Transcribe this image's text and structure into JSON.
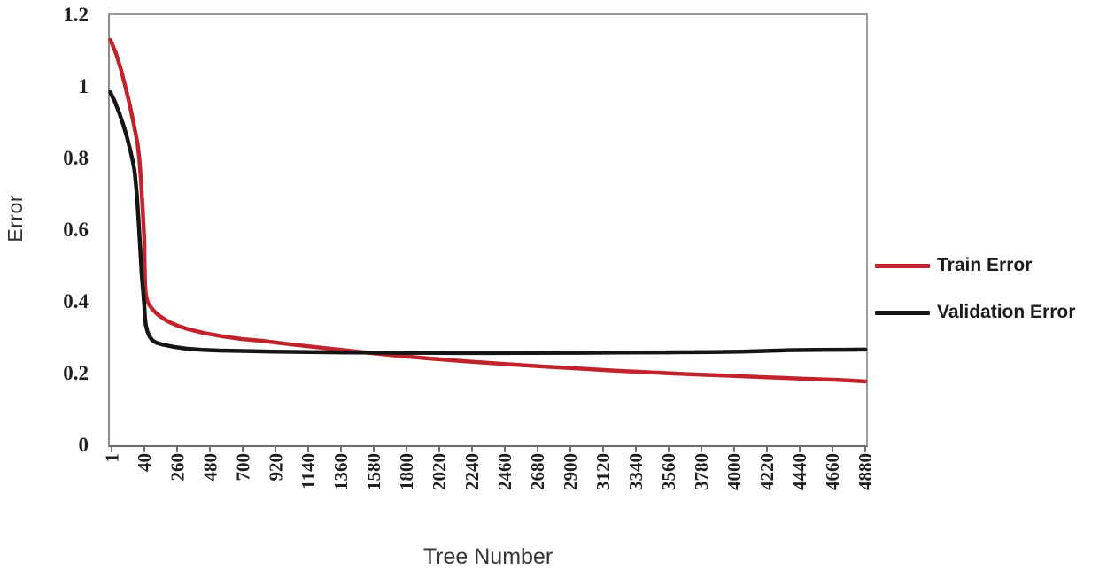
{
  "chart_data": {
    "type": "line",
    "title": "",
    "xlabel": "Tree Number",
    "ylabel": "Error",
    "grid": false,
    "legend_position": "right-center",
    "ylim": [
      0,
      1.2
    ],
    "y_ticks": [
      0,
      0.2,
      0.4,
      0.6,
      0.8,
      1,
      1.2
    ],
    "y_tick_labels": [
      "0",
      "0.2",
      "0.4",
      "0.6",
      "0.8",
      "1",
      "1.2"
    ],
    "x_ticks": [
      1,
      40,
      260,
      480,
      700,
      920,
      1140,
      1360,
      1580,
      1800,
      2020,
      2240,
      2460,
      2680,
      2900,
      3120,
      3340,
      3560,
      3780,
      4000,
      4220,
      4440,
      4660,
      4880
    ],
    "x_tick_labels": [
      "1",
      "40",
      "260",
      "480",
      "700",
      "920",
      "1140",
      "1360",
      "1580",
      "1800",
      "2020",
      "2240",
      "2460",
      "2680",
      "2900",
      "3120",
      "3340",
      "3560",
      "3780",
      "4000",
      "4220",
      "4440",
      "4660",
      "4880"
    ],
    "series": [
      {
        "name": "Train Error",
        "color": "#c0232b",
        "points": [
          [
            1,
            1.131
          ],
          [
            6,
            1.095
          ],
          [
            12,
            1.05
          ],
          [
            18,
            0.995
          ],
          [
            23,
            0.945
          ],
          [
            27,
            0.9
          ],
          [
            30,
            0.865
          ],
          [
            32,
            0.84
          ],
          [
            34,
            0.8
          ],
          [
            36,
            0.74
          ],
          [
            38,
            0.66
          ],
          [
            40,
            0.57
          ],
          [
            42,
            0.5
          ],
          [
            45,
            0.45
          ],
          [
            49,
            0.425
          ],
          [
            55,
            0.41
          ],
          [
            64,
            0.398
          ],
          [
            78,
            0.388
          ],
          [
            95,
            0.379
          ],
          [
            120,
            0.368
          ],
          [
            155,
            0.357
          ],
          [
            200,
            0.345
          ],
          [
            260,
            0.334
          ],
          [
            340,
            0.323
          ],
          [
            440,
            0.313
          ],
          [
            560,
            0.304
          ],
          [
            700,
            0.296
          ],
          [
            835,
            0.291
          ],
          [
            1030,
            0.281
          ],
          [
            1250,
            0.271
          ],
          [
            1450,
            0.262
          ],
          [
            1700,
            0.251
          ],
          [
            1950,
            0.242
          ],
          [
            2200,
            0.234
          ],
          [
            2450,
            0.227
          ],
          [
            2700,
            0.22
          ],
          [
            2950,
            0.214
          ],
          [
            3200,
            0.208
          ],
          [
            3450,
            0.203
          ],
          [
            3700,
            0.198
          ],
          [
            3950,
            0.194
          ],
          [
            4200,
            0.19
          ],
          [
            4450,
            0.186
          ],
          [
            4700,
            0.182
          ],
          [
            4920,
            0.178
          ]
        ]
      },
      {
        "name": "Validation Error",
        "color": "#151515",
        "points": [
          [
            1,
            0.985
          ],
          [
            5,
            0.958
          ],
          [
            10,
            0.928
          ],
          [
            15,
            0.893
          ],
          [
            19,
            0.862
          ],
          [
            23,
            0.825
          ],
          [
            26,
            0.795
          ],
          [
            28,
            0.77
          ],
          [
            29,
            0.75
          ],
          [
            31,
            0.7
          ],
          [
            33,
            0.63
          ],
          [
            35,
            0.55
          ],
          [
            37,
            0.47
          ],
          [
            39,
            0.415
          ],
          [
            41,
            0.38
          ],
          [
            44,
            0.355
          ],
          [
            50,
            0.335
          ],
          [
            60,
            0.318
          ],
          [
            75,
            0.303
          ],
          [
            95,
            0.292
          ],
          [
            120,
            0.286
          ],
          [
            160,
            0.281
          ],
          [
            237,
            0.2745
          ],
          [
            320,
            0.2695
          ],
          [
            430,
            0.266
          ],
          [
            560,
            0.264
          ],
          [
            700,
            0.263
          ],
          [
            900,
            0.261
          ],
          [
            1150,
            0.26
          ],
          [
            1450,
            0.2585
          ],
          [
            1750,
            0.2578
          ],
          [
            2050,
            0.2572
          ],
          [
            2350,
            0.257
          ],
          [
            2650,
            0.2572
          ],
          [
            2950,
            0.2578
          ],
          [
            3250,
            0.2585
          ],
          [
            3550,
            0.259
          ],
          [
            3850,
            0.26
          ],
          [
            4050,
            0.261
          ],
          [
            4200,
            0.263
          ],
          [
            4350,
            0.265
          ],
          [
            4550,
            0.266
          ],
          [
            4750,
            0.2665
          ],
          [
            4920,
            0.267
          ]
        ]
      }
    ]
  }
}
